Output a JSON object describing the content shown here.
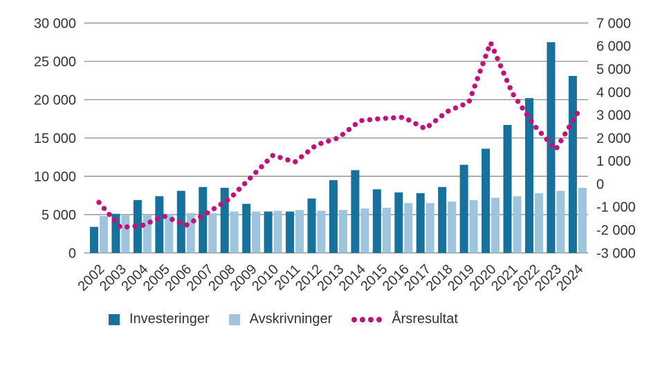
{
  "chart_data": {
    "type": "combo",
    "title": "",
    "categories": [
      "2002",
      "2003",
      "2004",
      "2005",
      "2006",
      "2007",
      "2008",
      "2009",
      "2010",
      "2011",
      "2012",
      "2013",
      "2014",
      "2015",
      "2016",
      "2017",
      "2018",
      "2019",
      "2020",
      "2021",
      "2022",
      "2023",
      "2024"
    ],
    "series": [
      {
        "name": "Investeringer",
        "type": "bar",
        "axis": "left",
        "color": "#16719c",
        "values": [
          3400,
          5100,
          6900,
          7400,
          8100,
          8600,
          8500,
          6400,
          5400,
          5400,
          7100,
          9500,
          10800,
          8300,
          7900,
          7800,
          8600,
          11500,
          13600,
          16700,
          20200,
          27500,
          23100
        ]
      },
      {
        "name": "Avskrivninger",
        "type": "bar",
        "axis": "left",
        "color": "#9fc4de",
        "values": [
          4800,
          5000,
          5000,
          5100,
          5200,
          5200,
          5400,
          5400,
          5500,
          5600,
          5500,
          5600,
          5800,
          5900,
          6500,
          6500,
          6700,
          6900,
          7200,
          7400,
          7800,
          8100,
          8500
        ]
      },
      {
        "name": "Årsresultat",
        "type": "dotted-line",
        "axis": "right",
        "color": "#c2127a",
        "values": [
          -800,
          -1900,
          -1800,
          -1400,
          -1800,
          -1250,
          -650,
          300,
          1250,
          950,
          1700,
          2000,
          2750,
          2850,
          2900,
          2400,
          3150,
          3550,
          6150,
          3950,
          2550,
          1500,
          3100
        ]
      }
    ],
    "left_axis": {
      "min": 0,
      "max": 30000,
      "step": 5000,
      "tick_labels": [
        "0",
        "5 000",
        "10 000",
        "15 000",
        "20 000",
        "25 000",
        "30 000"
      ]
    },
    "right_axis": {
      "min": -3000,
      "max": 7000,
      "step": 1000,
      "tick_labels": [
        "-3 000",
        "-2 000",
        "-1 000",
        "0",
        "1 000",
        "2 000",
        "3 000",
        "4 000",
        "5 000",
        "6 000",
        "7 000"
      ]
    },
    "grid": "horizontal",
    "legend_position": "bottom",
    "grid_color": "#8c8c8c",
    "text_color": "#333333"
  },
  "legend": {
    "items": [
      {
        "label": "Investeringer"
      },
      {
        "label": "Avskrivninger"
      },
      {
        "label": "Årsresultat"
      }
    ]
  }
}
